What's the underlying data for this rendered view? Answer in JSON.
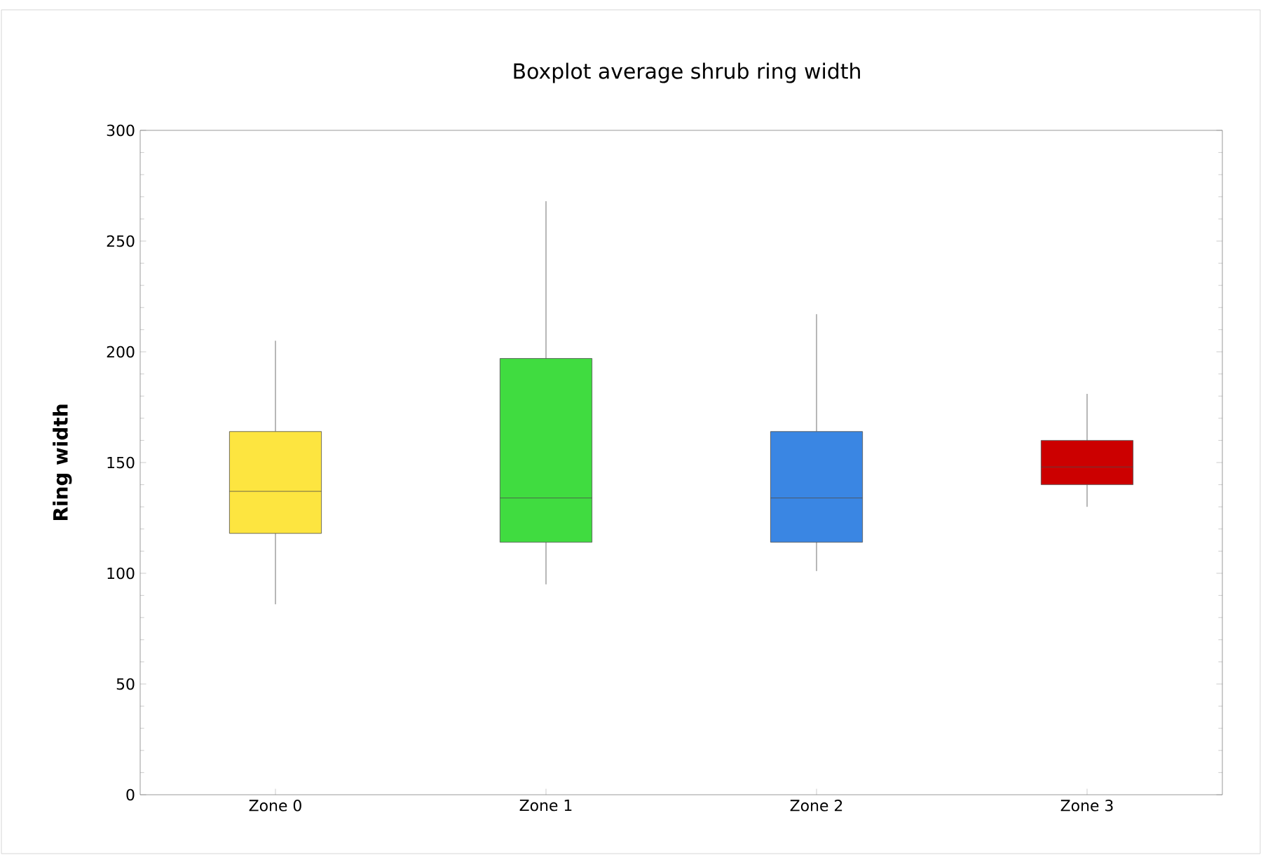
{
  "chart_data": {
    "type": "box",
    "title": "Boxplot average shrub ring width",
    "ylabel": "Ring width",
    "categories": [
      "Zone 0",
      "Zone 1",
      "Zone 2",
      "Zone 3"
    ],
    "boxes": [
      {
        "low": 86,
        "q1": 118,
        "median": 137,
        "q3": 164,
        "high": 205
      },
      {
        "low": 95,
        "q1": 114,
        "median": 134,
        "q3": 197,
        "high": 268
      },
      {
        "low": 101,
        "q1": 114,
        "median": 134,
        "q3": 164,
        "high": 217
      },
      {
        "low": 130,
        "q1": 140,
        "median": 148,
        "q3": 160,
        "high": 181
      }
    ],
    "colors": [
      "#fde540",
      "#40dc40",
      "#3a86e3",
      "#cc0000"
    ],
    "ylim": [
      0,
      300
    ],
    "yticks": [
      0,
      50,
      100,
      150,
      200,
      250,
      300
    ],
    "grid": false
  }
}
